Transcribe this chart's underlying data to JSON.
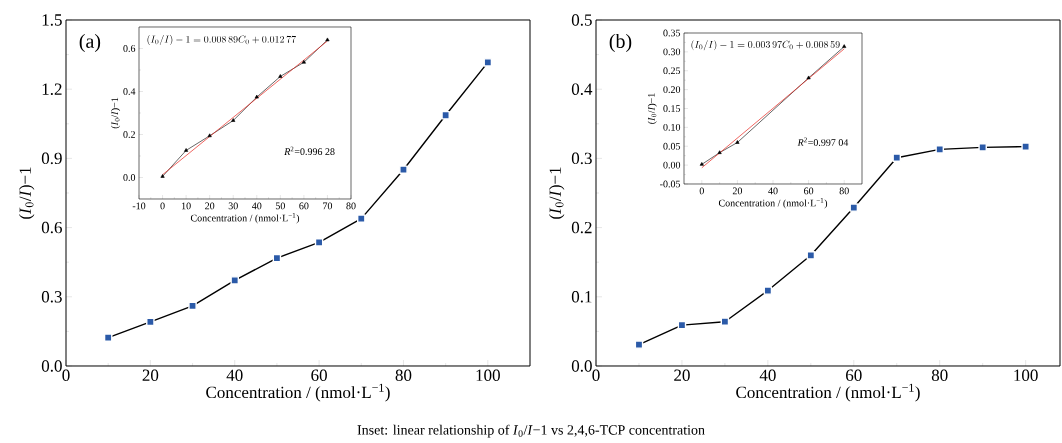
{
  "chart_data": [
    {
      "type": "line",
      "title": "(a)",
      "xlabel": "Concentration / (nmol·L$^{−1}$)",
      "ylabel": "(*I*$_{0}$/*I*)−1",
      "x": [
        10,
        20,
        30,
        40,
        50,
        60,
        70,
        80,
        90,
        100
      ],
      "series": [
        {
          "color": "#2b5aa8",
          "marker": "square",
          "values": [
            0.123,
            0.191,
            0.261,
            0.371,
            0.468,
            0.536,
            0.639,
            0.851,
            1.087,
            1.316
          ]
        }
      ],
      "xlim": [
        0,
        110
      ],
      "xticks": [
        0,
        20,
        40,
        60,
        80,
        100
      ],
      "ylim": [
        0,
        1.5
      ],
      "yticks": [
        {
          "value": 0,
          "label": "0.0"
        },
        {
          "value": 0.3,
          "label": "0.3"
        },
        {
          "value": 0.6,
          "label": "0.6"
        },
        {
          "value": 0.9,
          "label": "0.9"
        },
        {
          "value": 1.2,
          "label": "1.2"
        },
        {
          "value": 1.5,
          "label": "1.5"
        }
      ],
      "annotations": [
        "Inset: linear relationship of *I*$_{0}$/*I*−1 vs 2,4,6-TCP concentration"
      ]
    },
    {
      "type": "line",
      "xlabel": "Concentration / (nmol·L$^{−1}$)",
      "ylabel": "(*I*$_{0}$/*I*)−1",
      "series": [
        {
          "color": "#000000",
          "marker": "triangle",
          "x": [
            0,
            10,
            20,
            30,
            40,
            50,
            60,
            70
          ],
          "values": [
            0.005,
            0.126,
            0.194,
            0.265,
            0.374,
            0.47,
            0.536,
            0.64
          ]
        },
        {
          "type": "line",
          "color": "#e8221c",
          "marker": "none",
          "x": [
            0,
            70
          ],
          "values": [
            0.013,
            0.635
          ]
        }
      ],
      "xlim": [
        -10,
        80
      ],
      "xticks": [
        -10,
        0,
        10,
        20,
        30,
        40,
        50,
        60,
        70,
        80
      ],
      "ylim": [
        -0.1,
        0.7
      ],
      "yticks": [
        {
          "value": 0,
          "label": "0.0"
        },
        {
          "value": 0.2,
          "label": "0.2"
        },
        {
          "value": 0.4,
          "label": "0.4"
        },
        {
          "value": 0.6,
          "label": "0.6"
        }
      ],
      "annotations": [
        "(I_{0}/I)-1=0.008\\,89C_{0}+0.012\\,77",
        "*R*$^{2}$=0.996 28"
      ]
    },
    {
      "type": "line",
      "title": "(b)",
      "xlabel": "Concentration / (nmol·L$^{−1}$)",
      "ylabel": "(*I*$_{0}$/*I*)−1",
      "x": [
        10,
        20,
        30,
        40,
        50,
        60,
        70,
        80,
        90,
        100
      ],
      "series": [
        {
          "color": "#2b5aa8",
          "marker": "square",
          "values": [
            0.031,
            0.059,
            0.064,
            0.109,
            0.16,
            0.229,
            0.301,
            0.313,
            0.316,
            0.317
          ]
        }
      ],
      "xlim": [
        0,
        108
      ],
      "xticks": [
        0,
        20,
        40,
        60,
        80,
        100
      ],
      "ylim": [
        0,
        0.5
      ],
      "yticks": [
        {
          "value": 0,
          "label": "0.0"
        },
        {
          "value": 0.1,
          "label": "0.1"
        },
        {
          "value": 0.2,
          "label": "0.2"
        },
        {
          "value": 0.3,
          "label": "0.3"
        },
        {
          "value": 0.4,
          "label": "0.4"
        },
        {
          "value": 0.5,
          "label": "0.5"
        }
      ]
    },
    {
      "type": "line",
      "xlabel": "Concentration / (nmol·L$^{−1}$)",
      "ylabel": "(*I*$_{0}$/*I*)−1",
      "series": [
        {
          "color": "#000000",
          "marker": "triangle",
          "x": [
            0,
            10,
            20,
            60,
            80
          ],
          "values": [
            0.002,
            0.033,
            0.06,
            0.231,
            0.314
          ]
        },
        {
          "type": "line",
          "color": "#e8221c",
          "marker": "none",
          "x": [
            0,
            80
          ],
          "values": [
            -0.007,
            0.308
          ]
        }
      ],
      "xlim": [
        -10,
        90
      ],
      "xticks": [
        0,
        20,
        40,
        60,
        80
      ],
      "ylim": [
        -0.05,
        0.35
      ],
      "yticks": [
        {
          "value": -0.05,
          "label": "-0.05"
        },
        {
          "value": 0,
          "label": "0.00"
        },
        {
          "value": 0.05,
          "label": "0.05"
        },
        {
          "value": 0.1,
          "label": "0.10"
        },
        {
          "value": 0.15,
          "label": "0.15"
        },
        {
          "value": 0.2,
          "label": "0.20"
        },
        {
          "value": 0.25,
          "label": "0.25"
        },
        {
          "value": 0.3,
          "label": "0.30"
        },
        {
          "value": 0.35,
          "label": "0.35"
        }
      ],
      "annotations": [
        "(I_{0}/I)-1=0.003\\,97C_{0}+0.008\\,59",
        "*R*$^{2}$=0.997 04"
      ]
    }
  ]
}
